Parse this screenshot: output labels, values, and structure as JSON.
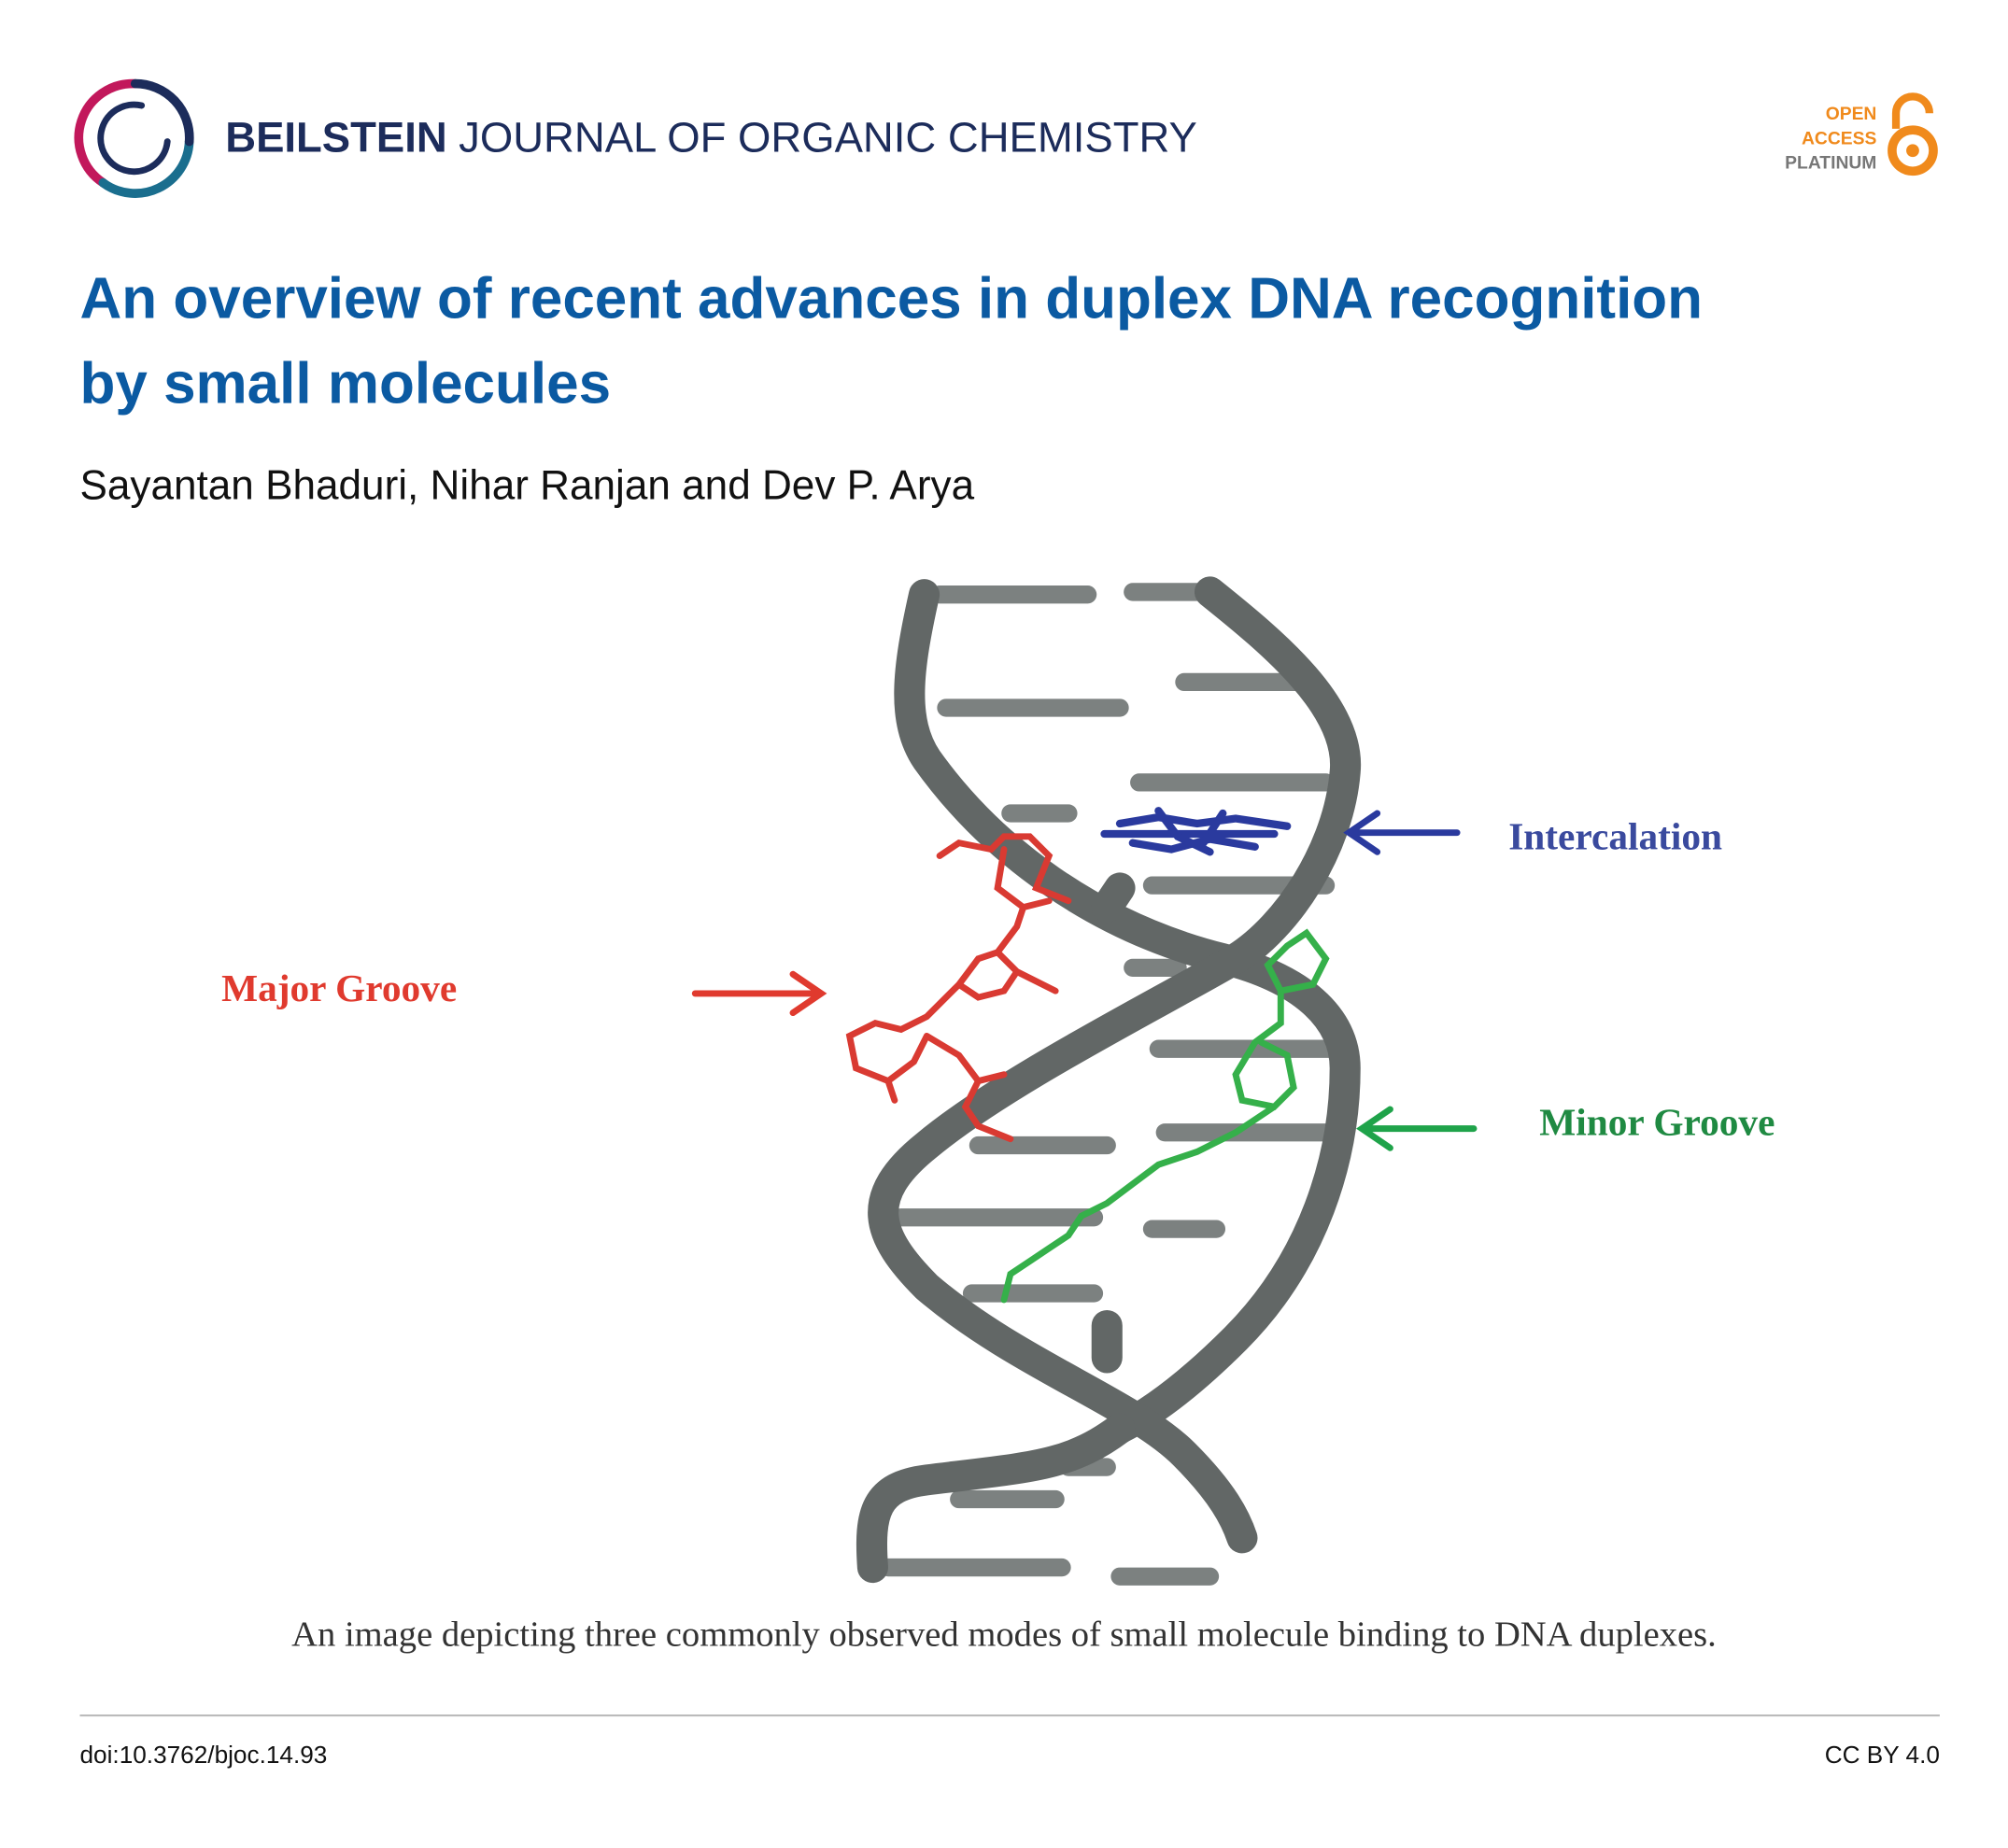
{
  "header": {
    "journal_bold": "BEILSTEIN",
    "journal_rest": "JOURNAL OF ORGANIC CHEMISTRY",
    "badge": [
      "OPEN",
      "ACCESS",
      "PLATINUM"
    ]
  },
  "article": {
    "title_lines": [
      "An overview of recent advances in duplex DNA recognition",
      "by small molecules"
    ],
    "authors": "Sayantan Bhaduri, Nihar Ranjan and Dev P. Arya"
  },
  "figure": {
    "labels": {
      "intercalation": "Intercalation",
      "major_groove": "Major Groove",
      "minor_groove": "Minor Groove"
    },
    "caption": "An image depicting three commonly observed modes of small molecule binding to DNA duplexes."
  },
  "footer": {
    "doi": "doi:10.3762/bjoc.14.93",
    "license": "CC BY 4.0"
  }
}
